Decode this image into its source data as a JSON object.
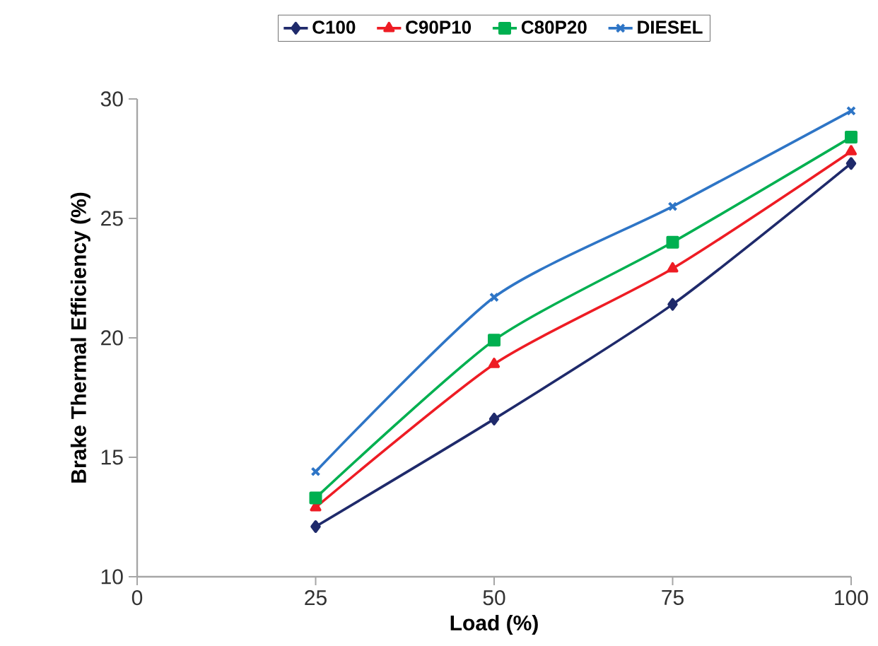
{
  "chart_data": {
    "type": "line",
    "xlabel": "Load (%)",
    "ylabel": "Brake Thermal Efficiency (%)",
    "x": [
      25,
      50,
      75,
      100
    ],
    "series": [
      {
        "name": "C100",
        "color": "#1f2a6b",
        "marker": "diamond",
        "values": [
          12.1,
          16.6,
          21.4,
          27.3
        ]
      },
      {
        "name": "C90P10",
        "color": "#ee1c24",
        "marker": "triangle",
        "values": [
          12.9,
          18.9,
          22.9,
          27.8
        ]
      },
      {
        "name": "C80P20",
        "color": "#00b050",
        "marker": "square",
        "values": [
          13.3,
          19.9,
          24.0,
          28.4
        ]
      },
      {
        "name": "DIESEL",
        "color": "#2e75c6",
        "marker": "cross",
        "values": [
          14.4,
          21.7,
          25.5,
          29.5
        ]
      }
    ],
    "xlim": [
      0,
      100
    ],
    "xticks": [
      0,
      25,
      50,
      75,
      100
    ],
    "ylim": [
      10,
      30
    ],
    "yticks": [
      10,
      15,
      20,
      25,
      30
    ],
    "grid": false,
    "legend": "top",
    "line_style": "solid"
  }
}
